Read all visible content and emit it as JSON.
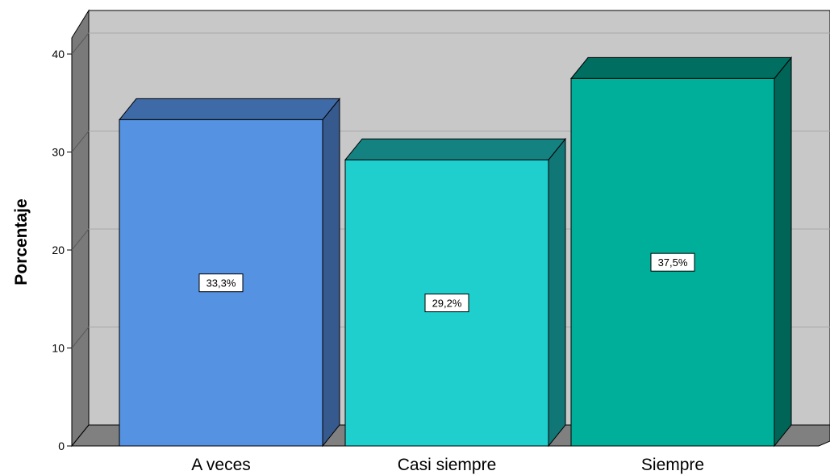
{
  "chart_data": {
    "type": "bar",
    "style": "3d",
    "categories": [
      "A veces",
      "Casi siempre",
      "Siempre"
    ],
    "values": [
      33.3,
      29.2,
      37.5
    ],
    "data_labels": [
      "33,3%",
      "29,2%",
      "37,5%"
    ],
    "ylabel": "Porcentaje",
    "xlabel": "",
    "ylim": [
      0,
      40
    ],
    "yticks": [
      "0",
      "10",
      "20",
      "30",
      "40"
    ],
    "grid": true,
    "colors": {
      "A veces": {
        "front": "#5592E1",
        "top": "#3E6BA8",
        "side": "#365A8D"
      },
      "Casi siempre": {
        "front": "#1ECFCD",
        "top": "#148281",
        "side": "#117776"
      },
      "Siempre": {
        "front": "#00AF9A",
        "top": "#006E61",
        "side": "#006457"
      },
      "back_wall": "#C8C8C8",
      "side_wall": "#7A7A7A",
      "floor": "#808080"
    }
  }
}
